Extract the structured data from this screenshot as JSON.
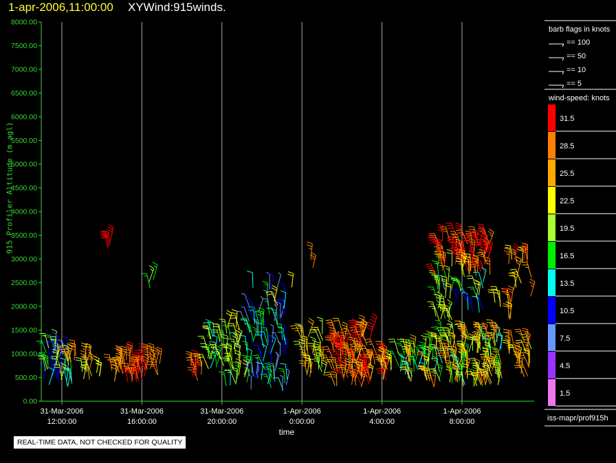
{
  "header": {
    "datetime": "1-apr-2006,11:00:00",
    "title": "XYWind:915winds."
  },
  "notice": "REAL-TIME DATA, NOT CHECKED FOR QUALITY",
  "colors": {
    "background": "#000000",
    "axis_labels": "#33dd33",
    "header_time": "#ffff33",
    "gridlines": "#aaaaaa"
  },
  "chart_data": {
    "type": "scatter",
    "mark": "wind-barb",
    "xlabel": "time",
    "ylabel": "915 Profiler Altitude (m agl)",
    "ylim": [
      0,
      8000
    ],
    "y_ticks": [
      "0.00",
      "500.00",
      "1000.00",
      "1500.00",
      "2000.00",
      "2500.00",
      "3000.00",
      "3500.00",
      "4000.00",
      "4500.00",
      "5000.00",
      "5500.00",
      "6000.00",
      "6500.00",
      "7000.00",
      "7500.00",
      "8000.00"
    ],
    "x_hours_range": [
      11.0,
      23.5
    ],
    "x_ticks": [
      {
        "hour": 12,
        "date": "31-Mar-2006",
        "time": "12:00:00"
      },
      {
        "hour": 16,
        "date": "31-Mar-2006",
        "time": "16:00:00"
      },
      {
        "hour": 20,
        "date": "31-Mar-2006",
        "time": "20:00:00"
      },
      {
        "hour": 24,
        "date": "1-Apr-2006",
        "time": "0:00:00"
      },
      {
        "hour": 28,
        "date": "1-Apr-2006",
        "time": "4:00:00"
      },
      {
        "hour": 32,
        "date": "1-Apr-2006",
        "time": "8:00:00"
      }
    ],
    "grid": "vertical",
    "barb_legend": {
      "title": "barb flags in knots",
      "entries": [
        "== 100",
        "== 50",
        "== 10",
        "== 5"
      ]
    },
    "speed_scale": {
      "title": "wind-speed: knots",
      "entries": [
        {
          "label": "31.5",
          "color": "#ff0000"
        },
        {
          "label": "28.5",
          "color": "#ff8000"
        },
        {
          "label": "25.5",
          "color": "#ffaa00"
        },
        {
          "label": "22.5",
          "color": "#ffff00"
        },
        {
          "label": "19.5",
          "color": "#aaff33"
        },
        {
          "label": "16.5",
          "color": "#00ee00"
        },
        {
          "label": "13.5",
          "color": "#00ffee"
        },
        {
          "label": "10.5",
          "color": "#0000ff"
        },
        {
          "label": "7.5",
          "color": "#6699ff"
        },
        {
          "label": "4.5",
          "color": "#9933ff"
        },
        {
          "label": "1.5",
          "color": "#ee77ee"
        }
      ]
    },
    "source": "iss-mapr/prof915h",
    "clusters": [
      {
        "hours": [
          11.1,
          12.5
        ],
        "alt": [
          300,
          1150
        ],
        "speeds": [
          8,
          22
        ],
        "n": 45
      },
      {
        "hours": [
          12.2,
          12.7
        ],
        "alt": [
          700,
          1100
        ],
        "speeds": [
          24,
          30
        ],
        "n": 6
      },
      {
        "hours": [
          13.0,
          14.0
        ],
        "alt": [
          450,
          900
        ],
        "speeds": [
          20,
          29
        ],
        "n": 14
      },
      {
        "hours": [
          14.1,
          14.8
        ],
        "alt": [
          3200,
          3400
        ],
        "speeds": [
          30,
          33
        ],
        "n": 4
      },
      {
        "hours": [
          14.4,
          15.3
        ],
        "alt": [
          400,
          900
        ],
        "speeds": [
          24,
          30
        ],
        "n": 14
      },
      {
        "hours": [
          15.3,
          16.3
        ],
        "alt": [
          350,
          1000
        ],
        "speeds": [
          27,
          33
        ],
        "n": 24
      },
      {
        "hours": [
          16.1,
          16.6
        ],
        "alt": [
          2300,
          2700
        ],
        "speeds": [
          16,
          19
        ],
        "n": 3
      },
      {
        "hours": [
          16.4,
          16.9
        ],
        "alt": [
          450,
          900
        ],
        "speeds": [
          27,
          32
        ],
        "n": 8
      },
      {
        "hours": [
          18.4,
          19.0
        ],
        "alt": [
          400,
          1000
        ],
        "speeds": [
          24,
          32
        ],
        "n": 10
      },
      {
        "hours": [
          19.2,
          20.2
        ],
        "alt": [
          600,
          1400
        ],
        "speeds": [
          12,
          22
        ],
        "n": 22
      },
      {
        "hours": [
          20.2,
          21.3
        ],
        "alt": [
          300,
          1600
        ],
        "speeds": [
          14,
          24
        ],
        "n": 32
      },
      {
        "hours": [
          21.2,
          23.3
        ],
        "alt": [
          200,
          2000
        ],
        "speeds": [
          6,
          18
        ],
        "n": 75
      },
      {
        "hours": [
          21.5,
          23.5
        ],
        "alt": [
          1700,
          2500
        ],
        "speeds": [
          4,
          24
        ],
        "n": 14
      },
      {
        "hours": [
          24.3,
          24.6
        ],
        "alt": [
          2700,
          3000
        ],
        "speeds": [
          26,
          29
        ],
        "n": 2
      },
      {
        "hours": [
          24.0,
          25.2
        ],
        "alt": [
          500,
          1500
        ],
        "speeds": [
          17,
          28
        ],
        "n": 30
      },
      {
        "hours": [
          25.5,
          27.5
        ],
        "alt": [
          300,
          1500
        ],
        "speeds": [
          24,
          34
        ],
        "n": 85
      },
      {
        "hours": [
          27.4,
          28.7
        ],
        "alt": [
          400,
          1000
        ],
        "speeds": [
          22,
          32
        ],
        "n": 22
      },
      {
        "hours": [
          28.8,
          30.2
        ],
        "alt": [
          350,
          1100
        ],
        "speeds": [
          12,
          26
        ],
        "n": 34
      },
      {
        "hours": [
          30.2,
          34.0
        ],
        "alt": [
          300,
          1400
        ],
        "speeds": [
          14,
          30
        ],
        "n": 145
      },
      {
        "hours": [
          30.7,
          31.6
        ],
        "alt": [
          1600,
          3000
        ],
        "speeds": [
          14,
          24
        ],
        "n": 28
      },
      {
        "hours": [
          30.7,
          33.4
        ],
        "alt": [
          2600,
          3500
        ],
        "speeds": [
          27,
          34
        ],
        "n": 60
      },
      {
        "hours": [
          31.8,
          33.1
        ],
        "alt": [
          1800,
          2800
        ],
        "speeds": [
          8,
          22
        ],
        "n": 22
      },
      {
        "hours": [
          33.3,
          34.5
        ],
        "alt": [
          1600,
          2100
        ],
        "speeds": [
          20,
          28
        ],
        "n": 8
      },
      {
        "hours": [
          34.3,
          35.5
        ],
        "alt": [
          2000,
          3100
        ],
        "speeds": [
          22,
          33
        ],
        "n": 16
      },
      {
        "hours": [
          34.2,
          35.5
        ],
        "alt": [
          500,
          1300
        ],
        "speeds": [
          20,
          30
        ],
        "n": 22
      }
    ]
  }
}
